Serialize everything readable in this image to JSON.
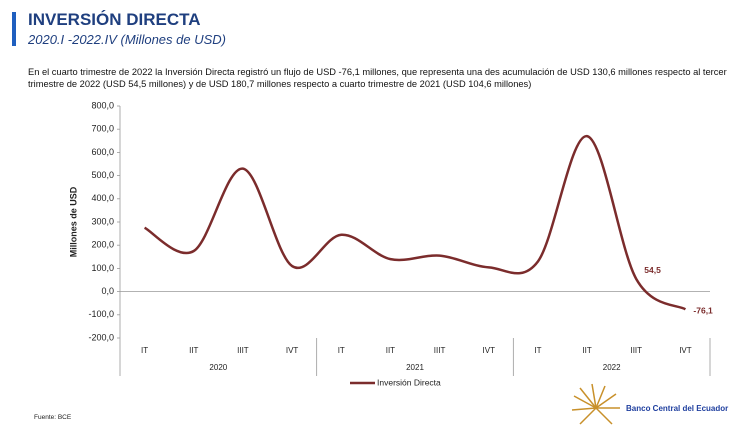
{
  "header": {
    "title": "INVERSIÓN DIRECTA",
    "subtitle": "2020.I -2022.IV (Millones de USD)"
  },
  "description": "En el cuarto trimestre de 2022 la Inversión Directa registró un flujo de USD -76,1 millones, que representa una des acumulación de USD 130,6 millones respecto al tercer trimestre de 2022 (USD 54,5 millones) y de USD 180,7 millones respecto a cuarto trimestre de 2021 (USD 104,6 millones)",
  "source": "Fuente: BCE",
  "logo": "Banco Central del Ecuador",
  "chart_data": {
    "type": "line",
    "ylabel": "Millones de USD",
    "categories": [
      "IT",
      "IIT",
      "IIIT",
      "IVT",
      "IT",
      "IIT",
      "IIIT",
      "IVT",
      "IT",
      "IIT",
      "IIIT",
      "IVT"
    ],
    "groups": [
      "2020",
      "2021",
      "2022"
    ],
    "series": [
      {
        "name": "Inversión Directa",
        "color": "#7b2c2c",
        "values": [
          275,
          175,
          530,
          110,
          245,
          140,
          155,
          104.6,
          130,
          670,
          54.5,
          -76.1
        ],
        "value_labels": [
          null,
          null,
          null,
          null,
          null,
          null,
          null,
          null,
          null,
          null,
          "54,5",
          "-76,1"
        ]
      }
    ],
    "ylim": [
      -200,
      800
    ],
    "yticks": [
      {
        "value": -200,
        "label": "-200,0"
      },
      {
        "value": -100,
        "label": "-100,0"
      },
      {
        "value": 0,
        "label": "0,0"
      },
      {
        "value": 100,
        "label": "100,0"
      },
      {
        "value": 200,
        "label": "200,0"
      },
      {
        "value": 300,
        "label": "300,0"
      },
      {
        "value": 400,
        "label": "400,0"
      },
      {
        "value": 500,
        "label": "500,0"
      },
      {
        "value": 600,
        "label": "600,0"
      },
      {
        "value": 700,
        "label": "700,0"
      },
      {
        "value": 800,
        "label": "800,0"
      }
    ],
    "legend": "bottom"
  }
}
